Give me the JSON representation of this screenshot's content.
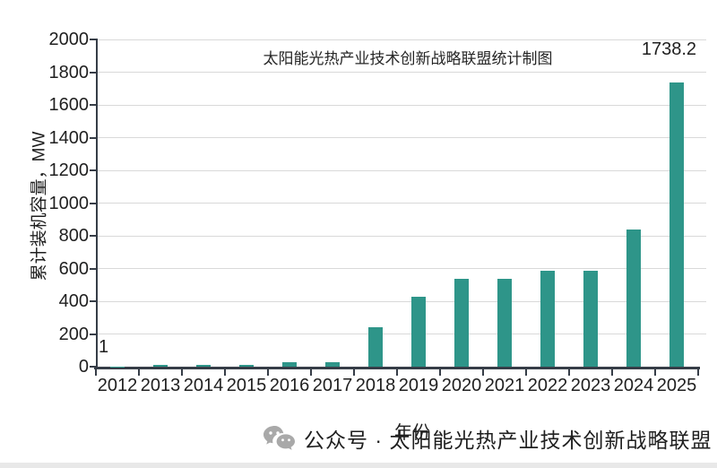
{
  "chart_data": {
    "type": "bar",
    "title": "太阳能光热产业技术创新战略联盟统计制图",
    "xlabel": "年份",
    "ylabel": "累计装机容量，MW",
    "categories": [
      "2012",
      "2013",
      "2014",
      "2015",
      "2016",
      "2017",
      "2018",
      "2019",
      "2020",
      "2021",
      "2022",
      "2023",
      "2024",
      "2025"
    ],
    "values": [
      1,
      10,
      10,
      12,
      30,
      30,
      240,
      428,
      538,
      538,
      588,
      588,
      838,
      1738.2
    ],
    "ylim": [
      0,
      2000
    ],
    "yticks": [
      0,
      200,
      400,
      600,
      800,
      1000,
      1200,
      1400,
      1600,
      1800,
      2000
    ],
    "grid": "horizontal",
    "legend": "none",
    "bar_color": "#2e9589",
    "grid_color": "#d9d9d9",
    "axis_color": "#363d47",
    "annotations": [
      {
        "text": "1",
        "target": "2012"
      },
      {
        "text": "1738.2",
        "target": "2025"
      }
    ]
  },
  "watermark": {
    "icon": "wechat-icon",
    "text": "公众号 · 太阳能光热产业技术创新战略联盟",
    "color": "#a9a9a9"
  }
}
